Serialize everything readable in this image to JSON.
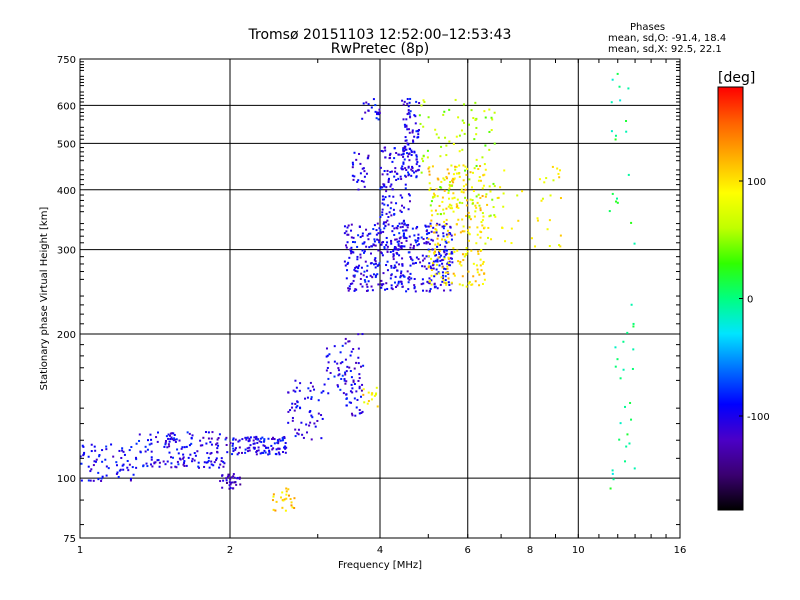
{
  "header": {
    "title": "Tromsø 20151103 12:52:00–12:53:43",
    "subtitle": "RwPretec (8p)"
  },
  "stats": {
    "heading": "Phases",
    "line_o": "mean, sd,O: -91.4, 18.4",
    "line_x": "mean, sd,X:  92.5, 22.1"
  },
  "colorbar": {
    "title": "[deg]",
    "ticks": [
      {
        "value": 100,
        "label": "100"
      },
      {
        "value": 0,
        "label": "0"
      },
      {
        "value": -100,
        "label": "-100"
      }
    ],
    "range": [
      -180,
      180
    ],
    "colors": [
      "#000000",
      "#3a0070",
      "#4b00c8",
      "#0000ff",
      "#0070ff",
      "#00e5ff",
      "#00ff80",
      "#30ff00",
      "#c0ff00",
      "#ffff00",
      "#ffb000",
      "#ff6000",
      "#ff0000"
    ]
  },
  "chart_data": {
    "type": "scatter",
    "title": "Tromsø 20151103 12:52:00–12:53:43",
    "subtitle": "RwPretec (8p)",
    "xlabel": "Frequency [MHz]",
    "ylabel": "Stationary phase Virtual Height [km]",
    "x_scale": "log",
    "y_scale": "log",
    "xlim": [
      1,
      16
    ],
    "ylim": [
      75,
      750
    ],
    "x_ticks": [
      1,
      2,
      4,
      6,
      8,
      10,
      16
    ],
    "y_ticks": [
      75,
      100,
      200,
      300,
      400,
      500,
      600,
      750
    ],
    "grid": true,
    "color_variable": "Phase [deg]",
    "clusters": [
      {
        "x_range": [
          1.0,
          1.3
        ],
        "y_range": [
          98,
          118
        ],
        "phase": -100,
        "count": 70
      },
      {
        "x_range": [
          1.3,
          2.0
        ],
        "y_range": [
          105,
          125
        ],
        "phase": -100,
        "count": 150
      },
      {
        "x_range": [
          1.9,
          2.1
        ],
        "y_range": [
          95,
          102
        ],
        "phase": -120,
        "count": 35
      },
      {
        "x_range": [
          2.0,
          2.6
        ],
        "y_range": [
          112,
          122
        ],
        "phase": -100,
        "count": 110
      },
      {
        "x_range": [
          2.6,
          3.1
        ],
        "y_range": [
          120,
          160
        ],
        "phase": -100,
        "count": 60
      },
      {
        "x_range": [
          3.1,
          3.4
        ],
        "y_range": [
          150,
          190
        ],
        "phase": -95,
        "count": 30
      },
      {
        "x_range": [
          3.4,
          3.7
        ],
        "y_range": [
          135,
          200
        ],
        "phase": -105,
        "count": 60
      },
      {
        "x_range": [
          2.4,
          2.7
        ],
        "y_range": [
          85,
          96
        ],
        "phase": 110,
        "count": 25
      },
      {
        "x_range": [
          3.7,
          4.0
        ],
        "y_range": [
          140,
          155
        ],
        "phase": 100,
        "count": 15
      },
      {
        "x_range": [
          3.4,
          5.6
        ],
        "y_range": [
          245,
          340
        ],
        "phase": -100,
        "count": 420
      },
      {
        "x_range": [
          4.0,
          4.6
        ],
        "y_range": [
          300,
          500
        ],
        "phase": -100,
        "count": 140
      },
      {
        "x_range": [
          4.4,
          4.8
        ],
        "y_range": [
          420,
          620
        ],
        "phase": -100,
        "count": 90
      },
      {
        "x_range": [
          3.5,
          3.8
        ],
        "y_range": [
          400,
          480
        ],
        "phase": -110,
        "count": 25
      },
      {
        "x_range": [
          3.6,
          4.0
        ],
        "y_range": [
          550,
          620
        ],
        "phase": -100,
        "count": 20
      },
      {
        "x_range": [
          5.0,
          6.5
        ],
        "y_range": [
          250,
          450
        ],
        "phase": 100,
        "count": 230
      },
      {
        "x_range": [
          4.8,
          6.8
        ],
        "y_range": [
          350,
          620
        ],
        "phase": 60,
        "count": 110
      },
      {
        "x_range": [
          6.5,
          9.5
        ],
        "y_range": [
          300,
          450
        ],
        "phase": 90,
        "count": 45
      },
      {
        "x_range": [
          11.5,
          13.0
        ],
        "y_range": [
          95,
          700
        ],
        "phase": 0,
        "count": 45
      }
    ]
  }
}
